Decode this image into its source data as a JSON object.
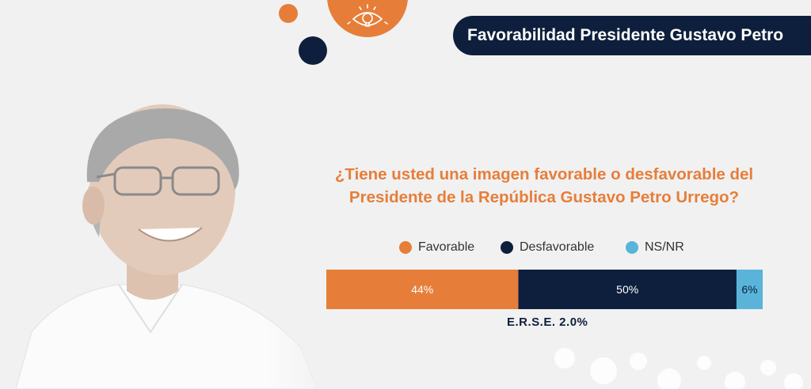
{
  "header": {
    "title": "Favorabilidad Presidente Gustavo Petro"
  },
  "question": {
    "line1": "¿Tiene usted una imagen favorable o desfavorable del",
    "line2": "Presidente de la República Gustavo Petro Urrego?"
  },
  "chart_data": {
    "type": "bar",
    "orientation": "horizontal-stacked",
    "title": "",
    "xlabel": "",
    "ylabel": "",
    "xlim": [
      0,
      100
    ],
    "grid": false,
    "legend_position": "top",
    "series": [
      {
        "name": "Favorable",
        "values": [
          44
        ],
        "label": "44%",
        "color": "#e67e3a"
      },
      {
        "name": "Desfavorable",
        "values": [
          50
        ],
        "label": "50%",
        "color": "#0d1f3c"
      },
      {
        "name": "NS/NR",
        "values": [
          6
        ],
        "label": "6%",
        "color": "#5ab4d9"
      }
    ],
    "annotation": "E.R.S.E. 2.0%"
  },
  "colors": {
    "accent": "#e67e3a",
    "navy": "#0d1f3c",
    "light_blue": "#5ab4d9",
    "background": "#f1f1f1"
  },
  "icons": {
    "logo": "eye-lightbulb-icon"
  }
}
